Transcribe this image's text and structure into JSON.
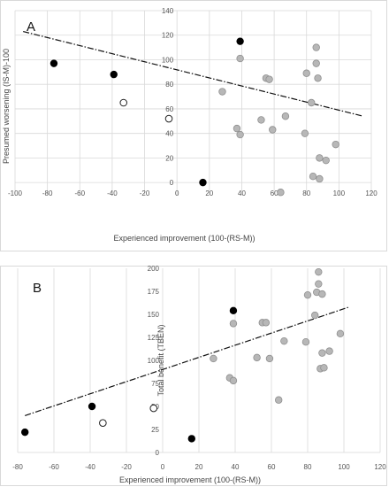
{
  "chart_data": [
    {
      "type": "scatter",
      "panel_label": "A",
      "xlabel": "Experienced improvement (100-(RS-M))",
      "ylabel": "Presumed worsening (IS-M)-100",
      "xlim": [
        -100,
        120
      ],
      "ylim": [
        -10,
        140
      ],
      "xticks": [
        -100,
        -80,
        -60,
        -40,
        -20,
        0,
        20,
        40,
        60,
        80,
        100,
        120
      ],
      "yticks": [
        0,
        20,
        40,
        60,
        80,
        100,
        120,
        140
      ],
      "grid": "vertical and horizontal",
      "trendline": {
        "x": [
          -95,
          115
        ],
        "y": [
          123,
          54
        ]
      },
      "points": {
        "black": [
          [
            -76,
            97
          ],
          [
            -39,
            88
          ],
          [
            16,
            0
          ],
          [
            39,
            115
          ]
        ],
        "open": [
          [
            -33,
            65
          ],
          [
            -5,
            52
          ]
        ],
        "gray": [
          [
            28,
            74
          ],
          [
            37,
            44
          ],
          [
            39,
            39
          ],
          [
            39,
            101
          ],
          [
            52,
            51
          ],
          [
            55,
            85
          ],
          [
            57,
            84
          ],
          [
            59,
            43
          ],
          [
            64,
            -8
          ],
          [
            67,
            54
          ],
          [
            79,
            40
          ],
          [
            80,
            89
          ],
          [
            83,
            65
          ],
          [
            84,
            5
          ],
          [
            86,
            110
          ],
          [
            86,
            97
          ],
          [
            87,
            85
          ],
          [
            88,
            20
          ],
          [
            88,
            3
          ],
          [
            92,
            18
          ],
          [
            98,
            31
          ]
        ]
      }
    },
    {
      "type": "scatter",
      "panel_label": "B",
      "xlabel": "Experienced improvement (100-(RS-M))",
      "ylabel": "Total benefit (TBEN)",
      "xlim": [
        -80,
        120
      ],
      "ylim": [
        0,
        200
      ],
      "xticks": [
        -80,
        -60,
        -40,
        -20,
        0,
        20,
        40,
        60,
        80,
        100,
        120
      ],
      "yticks": [
        0,
        25,
        50,
        75,
        100,
        125,
        150,
        175,
        200
      ],
      "grid": "vertical only",
      "trendline": {
        "x": [
          -76,
          103
        ],
        "y": [
          40,
          158
        ]
      },
      "points": {
        "black": [
          [
            -76,
            22
          ],
          [
            -39,
            50
          ],
          [
            16,
            15
          ],
          [
            39,
            154
          ]
        ],
        "open": [
          [
            -33,
            32
          ],
          [
            -5,
            48
          ]
        ],
        "gray": [
          [
            28,
            102
          ],
          [
            37,
            81
          ],
          [
            39,
            78
          ],
          [
            39,
            140
          ],
          [
            52,
            103
          ],
          [
            55,
            141
          ],
          [
            57,
            141
          ],
          [
            59,
            102
          ],
          [
            64,
            57
          ],
          [
            67,
            121
          ],
          [
            79,
            120
          ],
          [
            80,
            171
          ],
          [
            84,
            149
          ],
          [
            85,
            174
          ],
          [
            86,
            196
          ],
          [
            86,
            183
          ],
          [
            87,
            91
          ],
          [
            88,
            172
          ],
          [
            88,
            108
          ],
          [
            89,
            92
          ],
          [
            92,
            110
          ],
          [
            98,
            129
          ]
        ]
      }
    }
  ]
}
